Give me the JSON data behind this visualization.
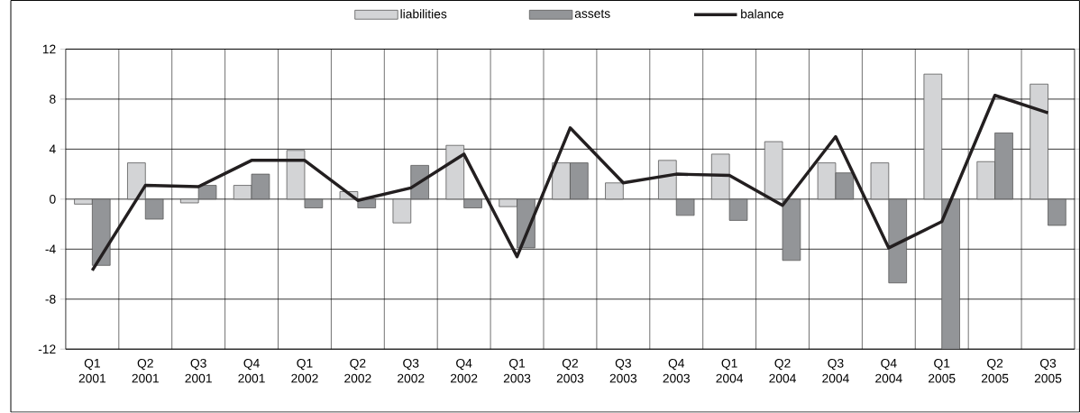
{
  "chart_data": {
    "type": "bar",
    "categories": [
      "Q1 2001",
      "Q2 2001",
      "Q3 2001",
      "Q4 2001",
      "Q1 2002",
      "Q2 2002",
      "Q3 2002",
      "Q4 2002",
      "Q1 2003",
      "Q2 2003",
      "Q3 2003",
      "Q4 2003",
      "Q1 2004",
      "Q2 2004",
      "Q3 2004",
      "Q4 2004",
      "Q1 2005",
      "Q2 2005",
      "Q3 2005"
    ],
    "series": [
      {
        "name": "liabilities",
        "color": "#d3d4d6",
        "values": [
          -0.4,
          2.9,
          -0.3,
          1.1,
          3.9,
          0.6,
          -1.9,
          4.3,
          -0.6,
          2.9,
          1.3,
          3.1,
          3.6,
          4.6,
          2.9,
          2.9,
          10.0,
          3.0,
          9.2
        ]
      },
      {
        "name": "assets",
        "color": "#939598",
        "values": [
          -5.3,
          -1.6,
          1.1,
          2.0,
          -0.7,
          -0.7,
          2.7,
          -0.7,
          -3.9,
          2.9,
          null,
          -1.3,
          -1.7,
          -4.9,
          2.1,
          -6.7,
          -12,
          5.3,
          -2.1
        ]
      },
      {
        "name": "balance",
        "type": "line",
        "color": "#231f20",
        "values": [
          -5.7,
          1.1,
          1.0,
          3.1,
          3.1,
          -0.1,
          0.9,
          3.6,
          -4.6,
          5.7,
          1.3,
          2.0,
          1.9,
          -0.5,
          5.0,
          -3.9,
          -1.8,
          8.3,
          6.9
        ]
      }
    ],
    "ylim": [
      -12,
      12
    ],
    "yticks": [
      -12,
      -8,
      -4,
      0,
      4,
      8,
      12
    ],
    "grid": true,
    "legend": "top"
  }
}
